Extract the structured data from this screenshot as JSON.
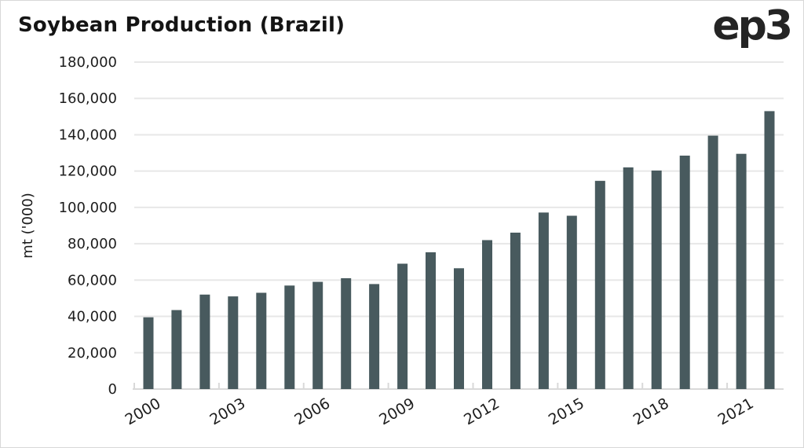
{
  "header": {
    "title": "Soybean Production (Brazil)",
    "logo_text": "ep3"
  },
  "chart_data": {
    "type": "bar",
    "title": "Soybean Production (Brazil)",
    "xlabel": "",
    "ylabel": "mt ('000)",
    "categories": [
      2000,
      2001,
      2002,
      2003,
      2004,
      2005,
      2006,
      2007,
      2008,
      2009,
      2010,
      2011,
      2012,
      2013,
      2014,
      2015,
      2016,
      2017,
      2018,
      2019,
      2020,
      2021,
      2022
    ],
    "values": [
      39500,
      43500,
      52000,
      51000,
      53000,
      57000,
      59000,
      61000,
      57800,
      69000,
      75300,
      66500,
      82000,
      86100,
      97200,
      95400,
      114600,
      122000,
      120300,
      128500,
      139500,
      129500,
      153000
    ],
    "ylim": [
      0,
      180000
    ],
    "ytick_step": 20000,
    "ytick_labels": [
      "0",
      "20,000",
      "40,000",
      "60,000",
      "80,000",
      "100,000",
      "120,000",
      "140,000",
      "160,000",
      "180,000"
    ],
    "xtick_labels": [
      "2000",
      "2003",
      "2006",
      "2009",
      "2012",
      "2015",
      "2018",
      "2021"
    ],
    "xtick_every": 3,
    "grid": "horizontal",
    "legend_position": "none",
    "colors": {
      "bar": "#485a5e",
      "grid": "#e7e7e7",
      "axis": "#d9d9d9",
      "text": "#1d1d1d",
      "title": "#141414",
      "background": "#ffffff"
    }
  }
}
